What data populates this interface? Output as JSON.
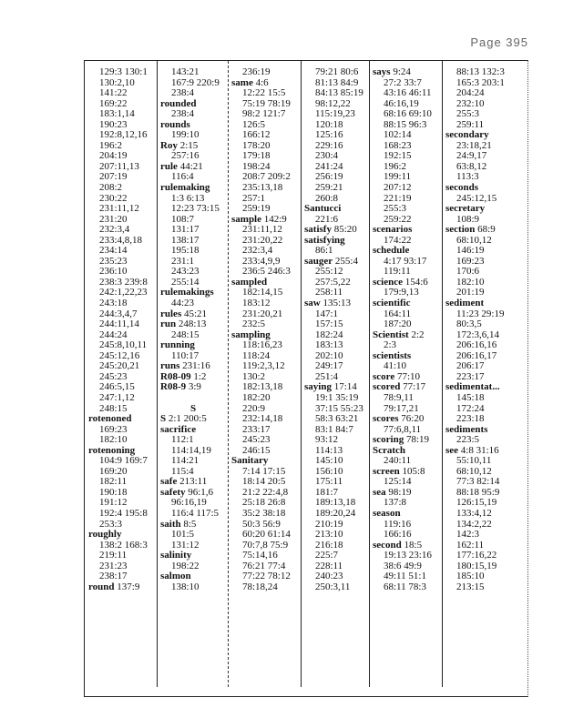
{
  "header": {
    "page": "Page 395"
  },
  "columns": [
    {
      "lines": [
        "129:3 130:1",
        "130:2,10",
        "141:22",
        "169:22",
        "183:1,14",
        "190:23",
        "192:8,12,16",
        "196:2",
        "204:19",
        "207:11,13",
        "207:19",
        "208:2",
        "230:22",
        "231:11,12",
        "231:20",
        "232:3,4",
        "233:4,8,18",
        "234:14",
        "235:23",
        "236:10",
        "238:3 239:8",
        "242:1,22,23",
        "243:18",
        "244:3,4,7",
        "244:11,14",
        "244:24",
        "245:8,10,11",
        "245:12,16",
        "245:20,21",
        "245:23",
        "246:5,15",
        "247:1,12",
        "248:15",
        [
          "rotenoned",
          ""
        ],
        "169:23",
        "182:10",
        [
          "rotenoning",
          ""
        ],
        "104:9 169:7",
        "169:20",
        "182:11",
        "190:18",
        "191:12",
        "192:4 195:8",
        "253:3",
        [
          "roughly",
          ""
        ],
        "138:2 168:3",
        "219:11",
        "231:23",
        "238:17",
        [
          "round",
          "137:9"
        ]
      ]
    },
    {
      "lines": [
        "143:21",
        "167:9 220:9",
        "238:4",
        [
          "rounded",
          ""
        ],
        "238:4",
        [
          "rounds",
          ""
        ],
        "199:10",
        [
          "Roy",
          "2:15"
        ],
        "257:16",
        [
          "rule",
          "44:21"
        ],
        "116:4",
        [
          "rulemaking",
          ""
        ],
        "1:3 6:13",
        "12:23 73:15",
        "108:7",
        "131:17",
        "138:17",
        "195:18",
        "231:1",
        "243:23",
        "255:14",
        [
          "rulemakings",
          ""
        ],
        "44:23",
        [
          "rules",
          "45:21"
        ],
        [
          "run",
          "248:13"
        ],
        "248:15",
        [
          "running",
          ""
        ],
        "110:17",
        [
          "runs",
          "231:16"
        ],
        [
          "R08-09",
          "1:2"
        ],
        [
          "R08-9",
          "3:9"
        ],
        "",
        {
          "section": "S"
        },
        [
          "S",
          "2:1 200:5"
        ],
        [
          "sacrifice",
          ""
        ],
        "112:1",
        "114:14,19",
        "114:21",
        "115:4",
        [
          "safe",
          "213:11"
        ],
        [
          "safety",
          "96:1,6"
        ],
        "96:16,19",
        "116:4 117:5",
        [
          "saith",
          "8:5"
        ],
        "101:5",
        "131:12",
        [
          "salinity",
          ""
        ],
        "198:22",
        [
          "salmon",
          ""
        ],
        "138:10"
      ]
    },
    {
      "lines": [
        "236:19",
        [
          "same",
          "4:6"
        ],
        "12:22 15:5",
        "75:19 78:19",
        "98:2 121:7",
        "126:5",
        "166:12",
        "178:20",
        "179:18",
        "198:24",
        "208:7 209:2",
        "235:13,18",
        "257:1",
        "259:19",
        [
          "sample",
          "142:9"
        ],
        "231:11,12",
        "231:20,22",
        "232:3,4",
        "233:4,9,9",
        "236:5 246:3",
        [
          "sampled",
          ""
        ],
        "182:14,15",
        "183:12",
        "231:20,21",
        "232:5",
        [
          "sampling",
          ""
        ],
        "118:16,23",
        "118:24",
        "119:2,3,12",
        "130:2",
        "182:13,18",
        "182:20",
        "220:9",
        "232:14,18",
        "233:17",
        "245:23",
        "246:15",
        [
          "Sanitary",
          ""
        ],
        "7:14 17:15",
        "18:14 20:5",
        "21:2 22:4,8",
        "25:18 26:8",
        "35:2 38:18",
        "50:3 56:9",
        "60:20 61:14",
        "70:7,8 75:9",
        "75:14,16",
        "76:21 77:4",
        "77:22 78:12",
        "78:18,24"
      ]
    },
    {
      "lines": [
        "79:21 80:6",
        "81:13 84:9",
        "84:13 85:19",
        "98:12,22",
        "115:19,23",
        "120:18",
        "125:16",
        "229:16",
        "230:4",
        "241:24",
        "256:19",
        "259:21",
        "260:8",
        [
          "Santucci",
          ""
        ],
        "221:6",
        [
          "satisfy",
          "85:20"
        ],
        [
          "satisfying",
          ""
        ],
        "86:1",
        [
          "sauger",
          "255:4"
        ],
        "255:12",
        "257:5,22",
        "258:11",
        [
          "saw",
          "135:13"
        ],
        "147:1",
        "157:15",
        "182:24",
        "183:13",
        "202:10",
        "249:17",
        "251:4",
        [
          "saying",
          "17:14"
        ],
        "19:1 35:19",
        "37:15 55:23",
        "58:3 63:21",
        "83:1 84:7",
        "93:12",
        "114:13",
        "145:10",
        "156:10",
        "175:11",
        "181:7",
        "189:13,18",
        "189:20,24",
        "210:19",
        "213:10",
        "216:18",
        "225:7",
        "228:11",
        "240:23",
        "250:3,11"
      ]
    },
    {
      "lines": [
        [
          "says",
          "9:24"
        ],
        "27:2 33:7",
        "43:16 46:11",
        "46:16,19",
        "68:16 69:10",
        "88:15 96:3",
        "102:14",
        "168:23",
        "192:15",
        "196:2",
        "199:11",
        "207:12",
        "221:19",
        "255:3",
        "259:22",
        [
          "scenarios",
          ""
        ],
        "174:22",
        [
          "schedule",
          ""
        ],
        "4:17 93:17",
        "119:11",
        [
          "science",
          "154:6"
        ],
        "179:9,13",
        [
          "scientific",
          ""
        ],
        "164:11",
        "187:20",
        [
          "Scientist",
          "2:2"
        ],
        "2:3",
        [
          "scientists",
          ""
        ],
        "41:10",
        [
          "score",
          "77:10"
        ],
        [
          "scored",
          "77:17"
        ],
        "78:9,11",
        "79:17,21",
        [
          "scores",
          "76:20"
        ],
        "77:6,8,11",
        [
          "scoring",
          "78:19"
        ],
        [
          "Scratch",
          ""
        ],
        "240:11",
        [
          "screen",
          "105:8"
        ],
        "125:14",
        [
          "sea",
          "98:19"
        ],
        "137:8",
        [
          "season",
          ""
        ],
        "119:16",
        "166:16",
        [
          "second",
          "18:5"
        ],
        "19:13 23:16",
        "38:6 49:9",
        "49:11 51:1",
        "68:11 78:3"
      ]
    },
    {
      "lines": [
        "88:13 132:3",
        "165:3 203:1",
        "204:24",
        "232:10",
        "255:3",
        "259:11",
        [
          "secondary",
          ""
        ],
        "23:18,21",
        "24:9,17",
        "63:8,12",
        "113:3",
        [
          "seconds",
          ""
        ],
        "245:12,15",
        [
          "secretary",
          ""
        ],
        "108:9",
        [
          "section",
          "68:9"
        ],
        "68:10,12",
        "146:19",
        "169:23",
        "170:6",
        "182:10",
        "201:19",
        [
          "sediment",
          ""
        ],
        "11:23 29:19",
        "80:3,5",
        "172:3,6,14",
        "206:16,16",
        "206:16,17",
        "206:17",
        "223:17",
        [
          "sedimentat...",
          ""
        ],
        "145:18",
        "172:24",
        "223:18",
        [
          "sediments",
          ""
        ],
        "223:5",
        [
          "see",
          "4:8 31:16"
        ],
        "55:10,11",
        "68:10,12",
        "77:3 82:14",
        "88:18 95:9",
        "126:15,19",
        "133:4,12",
        "134:2,22",
        "142:3",
        "162:11",
        "177:16,22",
        "180:15,19",
        "185:10",
        "213:15"
      ]
    }
  ]
}
